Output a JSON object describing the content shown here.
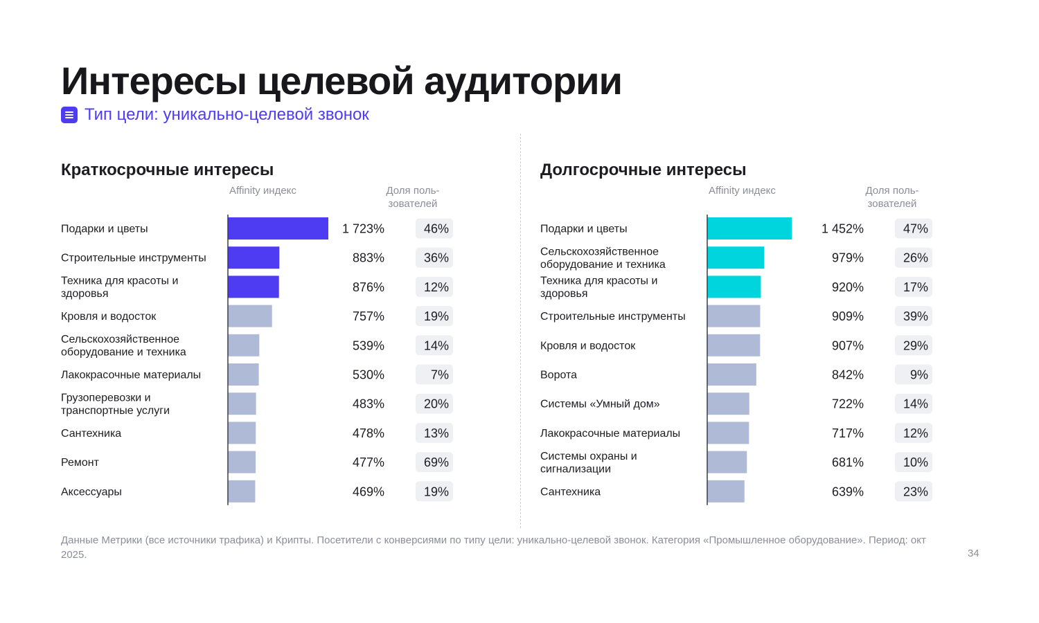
{
  "title": "Интересы целевой аудитории",
  "goal_type": "Тип цели: уникально-целевой звонок",
  "colors": {
    "accent_purple": "#4d3cf2",
    "accent_cyan": "#00d5de",
    "bar_gray": "#afbbd6",
    "share_bg": "#eef0f4"
  },
  "chart_data": [
    {
      "type": "bar",
      "title": "Краткосрочные интересы",
      "column_headers": {
        "affinity": "Affinity индекс",
        "share": "Доля поль-зователей"
      },
      "highlight_color": "#4d3cf2",
      "highlight_count": 3,
      "xlim": [
        0,
        1723
      ],
      "rows": [
        {
          "label": [
            "Подарки и цветы"
          ],
          "affinity": 1723,
          "affinity_label": "1 723%",
          "share_label": "46%"
        },
        {
          "label": [
            "Строительные инструменты"
          ],
          "affinity": 883,
          "affinity_label": "883%",
          "share_label": "36%"
        },
        {
          "label": [
            "Техника для красоты и",
            "здоровья"
          ],
          "affinity": 876,
          "affinity_label": "876%",
          "share_label": "12%"
        },
        {
          "label": [
            "Кровля и водосток"
          ],
          "affinity": 757,
          "affinity_label": "757%",
          "share_label": "19%"
        },
        {
          "label": [
            "Сельскохозяйственное",
            "оборудование и техника"
          ],
          "affinity": 539,
          "affinity_label": "539%",
          "share_label": "14%"
        },
        {
          "label": [
            "Лакокрасочные материалы"
          ],
          "affinity": 530,
          "affinity_label": "530%",
          "share_label": "7%"
        },
        {
          "label": [
            "Грузоперевозки и",
            "транспортные услуги"
          ],
          "affinity": 483,
          "affinity_label": "483%",
          "share_label": "20%"
        },
        {
          "label": [
            "Сантехника"
          ],
          "affinity": 478,
          "affinity_label": "478%",
          "share_label": "13%"
        },
        {
          "label": [
            "Ремонт"
          ],
          "affinity": 477,
          "affinity_label": "477%",
          "share_label": "69%"
        },
        {
          "label": [
            "Аксессуары"
          ],
          "affinity": 469,
          "affinity_label": "469%",
          "share_label": "19%"
        }
      ]
    },
    {
      "type": "bar",
      "title": "Долгосрочные интересы",
      "column_headers": {
        "affinity": "Affinity индекс",
        "share": "Доля поль-зователей"
      },
      "highlight_color": "#00d5de",
      "highlight_count": 3,
      "xlim": [
        0,
        1723
      ],
      "rows": [
        {
          "label": [
            "Подарки и цветы"
          ],
          "affinity": 1452,
          "affinity_label": "1 452%",
          "share_label": "47%"
        },
        {
          "label": [
            "Сельскохозяйственное",
            "оборудование и техника"
          ],
          "affinity": 979,
          "affinity_label": "979%",
          "share_label": "26%"
        },
        {
          "label": [
            "Техника для красоты и",
            "здоровья"
          ],
          "affinity": 920,
          "affinity_label": "920%",
          "share_label": "17%"
        },
        {
          "label": [
            "Строительные инструменты"
          ],
          "affinity": 909,
          "affinity_label": "909%",
          "share_label": "39%"
        },
        {
          "label": [
            "Кровля и водосток"
          ],
          "affinity": 907,
          "affinity_label": "907%",
          "share_label": "29%"
        },
        {
          "label": [
            "Ворота"
          ],
          "affinity": 842,
          "affinity_label": "842%",
          "share_label": "9%"
        },
        {
          "label": [
            "Системы «Умный дом»"
          ],
          "affinity": 722,
          "affinity_label": "722%",
          "share_label": "14%"
        },
        {
          "label": [
            "Лакокрасочные материалы"
          ],
          "affinity": 717,
          "affinity_label": "717%",
          "share_label": "12%"
        },
        {
          "label": [
            "Системы охраны и",
            "сигнализации"
          ],
          "affinity": 681,
          "affinity_label": "681%",
          "share_label": "10%"
        },
        {
          "label": [
            "Сантехника"
          ],
          "affinity": 639,
          "affinity_label": "639%",
          "share_label": "23%"
        }
      ]
    }
  ],
  "footnote": "Данные Метрики (все источники трафика) и Крипты. Посетители с конверсиями по типу цели: уникально-целевой звонок. Категория «Промышленное оборудование». Период: окт 2025.",
  "page_number": "34"
}
